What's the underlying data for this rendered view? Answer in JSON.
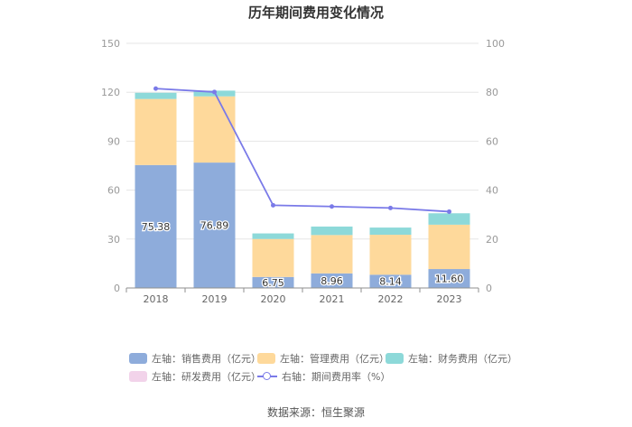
{
  "title": "历年期间费用变化情况",
  "source": "数据来源：恒生聚源",
  "legend": [
    {
      "label": "左轴：销售费用（亿元）",
      "color": "#8eacdb",
      "kind": "swatch"
    },
    {
      "label": "左轴：管理费用（亿元）",
      "color": "#fed99b",
      "kind": "swatch"
    },
    {
      "label": "左轴：财务费用（亿元）",
      "color": "#8dd9d9",
      "kind": "swatch"
    },
    {
      "label": "左轴：研发费用（亿元）",
      "color": "#f2d3ea",
      "kind": "swatch"
    },
    {
      "label": "右轴：期间费用率（%）",
      "color": "#7a7ae8",
      "kind": "line"
    }
  ],
  "chart_data": {
    "type": "bar",
    "stacked": true,
    "categories": [
      "2018",
      "2019",
      "2020",
      "2021",
      "2022",
      "2023"
    ],
    "y_left": {
      "min": 0,
      "max": 150,
      "ticks": [
        "0",
        "30",
        "60",
        "90",
        "120",
        "150"
      ]
    },
    "y_right": {
      "min": 0,
      "max": 100,
      "ticks": [
        "0",
        "20",
        "40",
        "60",
        "80",
        "100"
      ]
    },
    "grid": true,
    "legend_position": "bottom",
    "series": [
      {
        "name": "左轴：销售费用（亿元）",
        "axis": "left",
        "color": "#8eacdb",
        "values": [
          75.38,
          76.89,
          6.75,
          8.96,
          8.14,
          11.6
        ],
        "labels": [
          "75.38",
          "76.89",
          "6.75",
          "8.96",
          "8.14",
          "11.60"
        ]
      },
      {
        "name": "左轴：管理费用（亿元）",
        "axis": "left",
        "color": "#fed99b",
        "values": [
          40.5,
          40.6,
          23.3,
          23.5,
          24.5,
          27.2
        ]
      },
      {
        "name": "左轴：财务费用（亿元）",
        "axis": "left",
        "color": "#8dd9d9",
        "values": [
          3.8,
          3.5,
          3.4,
          5.2,
          4.4,
          7.0
        ]
      },
      {
        "name": "左轴：研发费用（亿元）",
        "axis": "left",
        "color": "#f2d3ea",
        "values": [
          0,
          0,
          0,
          0,
          0,
          0
        ]
      },
      {
        "name": "右轴：期间费用率（%）",
        "axis": "right",
        "type": "line",
        "color": "#7a7ae8",
        "values": [
          81.5,
          80.1,
          33.8,
          33.3,
          32.7,
          31.2
        ]
      }
    ]
  }
}
